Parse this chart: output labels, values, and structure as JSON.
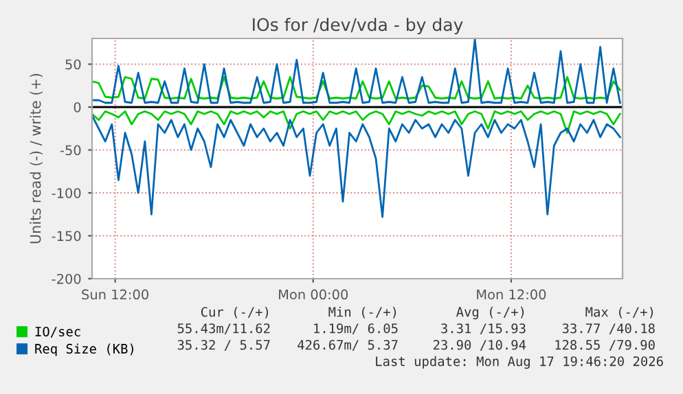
{
  "chart_data": {
    "type": "line",
    "title": "IOs for /dev/vda - by day",
    "ylabel": "Units read (-) / write (+)",
    "x": [
      "2026-08-16T10:36",
      "2026-08-16T11:00",
      "2026-08-16T11:24",
      "2026-08-16T11:48",
      "2026-08-16T12:12",
      "2026-08-16T12:36",
      "2026-08-16T13:00",
      "2026-08-16T13:24",
      "2026-08-16T13:48",
      "2026-08-16T14:12",
      "2026-08-16T14:36",
      "2026-08-16T15:00",
      "2026-08-16T15:24",
      "2026-08-16T15:48",
      "2026-08-16T16:12",
      "2026-08-16T16:36",
      "2026-08-16T17:00",
      "2026-08-16T17:24",
      "2026-08-16T17:48",
      "2026-08-16T18:12",
      "2026-08-16T18:36",
      "2026-08-16T19:00",
      "2026-08-16T19:24",
      "2026-08-16T19:48",
      "2026-08-16T20:12",
      "2026-08-16T20:36",
      "2026-08-16T21:00",
      "2026-08-16T21:24",
      "2026-08-16T21:48",
      "2026-08-16T22:12",
      "2026-08-16T22:36",
      "2026-08-16T23:00",
      "2026-08-16T23:24",
      "2026-08-16T23:48",
      "2026-08-17T00:12",
      "2026-08-17T00:36",
      "2026-08-17T01:00",
      "2026-08-17T01:24",
      "2026-08-17T01:48",
      "2026-08-17T02:12",
      "2026-08-17T02:36",
      "2026-08-17T03:00",
      "2026-08-17T03:24",
      "2026-08-17T03:48",
      "2026-08-17T04:12",
      "2026-08-17T04:36",
      "2026-08-17T05:00",
      "2026-08-17T05:24",
      "2026-08-17T05:48",
      "2026-08-17T06:12",
      "2026-08-17T06:36",
      "2026-08-17T07:00",
      "2026-08-17T07:24",
      "2026-08-17T07:48",
      "2026-08-17T08:12",
      "2026-08-17T08:36",
      "2026-08-17T09:00",
      "2026-08-17T09:24",
      "2026-08-17T09:48",
      "2026-08-17T10:12",
      "2026-08-17T10:36",
      "2026-08-17T11:00",
      "2026-08-17T11:24",
      "2026-08-17T11:48",
      "2026-08-17T12:12",
      "2026-08-17T12:36",
      "2026-08-17T13:00",
      "2026-08-17T13:24",
      "2026-08-17T13:48",
      "2026-08-17T14:12",
      "2026-08-17T14:36",
      "2026-08-17T15:00",
      "2026-08-17T15:24",
      "2026-08-17T15:48",
      "2026-08-17T16:12",
      "2026-08-17T16:36",
      "2026-08-17T17:00",
      "2026-08-17T17:24",
      "2026-08-17T17:48",
      "2026-08-17T18:12",
      "2026-08-17T18:36"
    ],
    "series": [
      {
        "color": "#00cc00",
        "values": [
          -8,
          -15,
          -5,
          -8,
          -12,
          -5,
          -20,
          -8,
          -5,
          -8,
          -15,
          -5,
          -8,
          -5,
          -8,
          -20,
          -5,
          -8,
          -5,
          -8,
          -20,
          -5,
          -8,
          -5,
          -8,
          -5,
          -12,
          -5,
          -8,
          -5,
          -25,
          -8,
          -5,
          -8,
          -5,
          -15,
          -5,
          -8,
          -5,
          -8,
          -5,
          -15,
          -8,
          -5,
          -8,
          -20,
          -5,
          -8,
          -5,
          -8,
          -10,
          -5,
          -8,
          -5,
          -8,
          -5,
          -20,
          -8,
          -5,
          -8,
          -25,
          -5,
          -8,
          -5,
          -8,
          -5,
          -15,
          -8,
          -5,
          -8,
          -5,
          -8,
          -30,
          -5,
          -8,
          -5,
          -8,
          -5,
          -8,
          -20,
          -8
        ]
      },
      {
        "color": "#0066b3",
        "values": [
          -10,
          -25,
          -40,
          -20,
          -85,
          -30,
          -55,
          -100,
          -40,
          -125,
          -20,
          -30,
          -15,
          -35,
          -20,
          -50,
          -25,
          -40,
          -70,
          -20,
          -35,
          -15,
          -30,
          -45,
          -20,
          -35,
          -25,
          -40,
          -30,
          -45,
          -15,
          -35,
          -25,
          -80,
          -30,
          -20,
          -45,
          -25,
          -110,
          -30,
          -40,
          -20,
          -35,
          -60,
          -128,
          -25,
          -40,
          -20,
          -30,
          -15,
          -25,
          -20,
          -35,
          -20,
          -30,
          -15,
          -25,
          -80,
          -30,
          -20,
          -35,
          -15,
          -30,
          -20,
          -25,
          -15,
          -40,
          -70,
          -20,
          -125,
          -45,
          -30,
          -25,
          -40,
          -20,
          -30,
          -15,
          -35,
          -20,
          -25,
          -35
        ]
      },
      {
        "name": "IO/sec",
        "color": "#00cc00",
        "values": [
          30,
          28,
          12,
          11,
          12,
          35,
          33,
          11,
          10,
          33,
          32,
          11,
          10,
          11,
          10,
          33,
          11,
          10,
          11,
          10,
          35,
          11,
          10,
          11,
          10,
          11,
          30,
          11,
          10,
          11,
          35,
          12,
          11,
          10,
          11,
          30,
          10,
          11,
          10,
          11,
          10,
          30,
          11,
          10,
          11,
          30,
          10,
          11,
          10,
          11,
          25,
          24,
          11,
          10,
          11,
          10,
          30,
          11,
          10,
          11,
          30,
          10,
          11,
          10,
          11,
          10,
          25,
          11,
          10,
          11,
          10,
          11,
          35,
          11,
          10,
          11,
          10,
          11,
          10,
          30,
          20
        ]
      },
      {
        "name": "Req Size (KB)",
        "color": "#0066b3",
        "values": [
          8,
          8,
          5,
          5,
          48,
          6,
          5,
          40,
          5,
          6,
          5,
          30,
          5,
          5,
          45,
          6,
          5,
          50,
          5,
          5,
          45,
          5,
          6,
          5,
          5,
          35,
          5,
          6,
          50,
          5,
          6,
          55,
          5,
          5,
          6,
          40,
          5,
          5,
          6,
          5,
          45,
          5,
          6,
          45,
          5,
          6,
          5,
          35,
          5,
          6,
          35,
          5,
          6,
          5,
          5,
          45,
          5,
          6,
          79,
          5,
          6,
          5,
          5,
          45,
          5,
          6,
          5,
          40,
          5,
          6,
          5,
          65,
          5,
          6,
          50,
          5,
          5,
          70,
          5,
          45,
          5
        ]
      }
    ],
    "xlim": [
      "2026-08-16T10:36",
      "2026-08-17T18:45"
    ],
    "xticks": [
      {
        "value": "2026-08-16T12:00",
        "label": "Sun 12:00"
      },
      {
        "value": "2026-08-17T00:00",
        "label": "Mon 00:00"
      },
      {
        "value": "2026-08-17T12:00",
        "label": "Mon 12:00"
      }
    ],
    "ylim": [
      -200,
      80
    ],
    "yticks": [
      -200,
      -150,
      -100,
      -50,
      0,
      50
    ],
    "grid": true,
    "legend": "bottom",
    "line_style": "solid",
    "ref_lines": [
      {
        "axis": "y",
        "value": 0,
        "color": "#000000"
      }
    ],
    "annotations": [
      "Cur (-/+)",
      "Min (-/+)",
      "Avg (-/+)",
      "Max (-/+)",
      "55.43m/11.62",
      "1.19m/ 6.05",
      "3.31 /15.93",
      "33.77 /40.18",
      "35.32 / 5.57",
      "426.67m/ 5.37",
      "23.90 /10.94",
      "128.55 /79.90",
      "Last update: Mon Aug 17 19:46:20 2026"
    ]
  }
}
